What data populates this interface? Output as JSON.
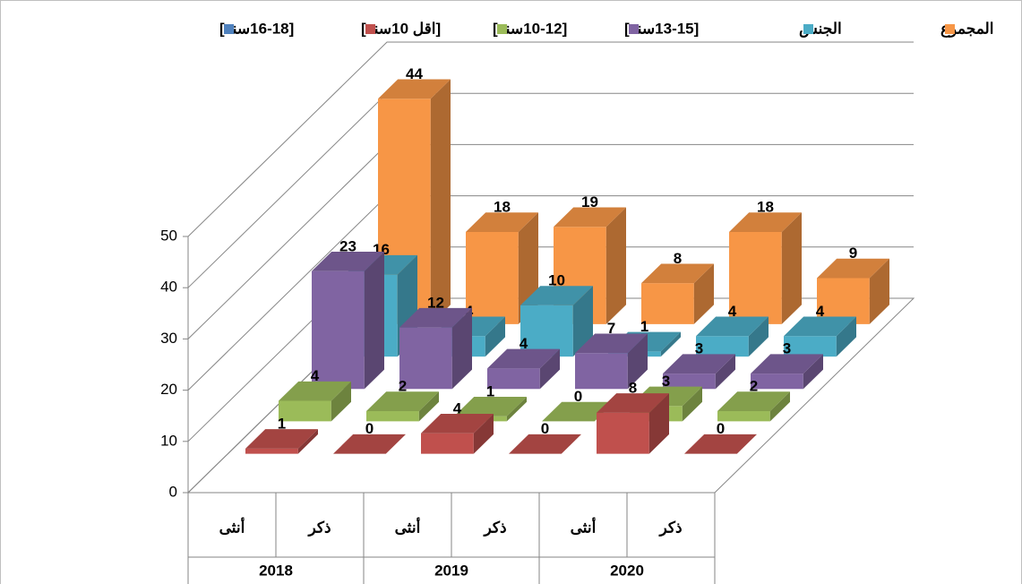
{
  "chart_data": {
    "type": "bar3d",
    "categories": [
      "أنثى",
      "ذكر",
      "أنثى",
      "ذكر",
      "أنثى",
      "ذكر"
    ],
    "category_groups": [
      "2018",
      "2019",
      "2020"
    ],
    "series": [
      {
        "name": "[16-18سنة]",
        "color": "#4f81bd",
        "values": [
          null,
          null,
          null,
          null,
          null,
          null
        ]
      },
      {
        "name": "[اقل 10سنة]",
        "color": "#c0504d",
        "values": [
          1,
          0,
          4,
          0,
          8,
          0
        ]
      },
      {
        "name": "[10-12سنة]",
        "color": "#9bbb59",
        "values": [
          4,
          2,
          1,
          0,
          3,
          2
        ]
      },
      {
        "name": "[13-15سنة]",
        "color": "#8064a2",
        "values": [
          23,
          12,
          4,
          7,
          3,
          3
        ]
      },
      {
        "name": "الجنس",
        "color": "#4bacc6",
        "values": [
          16,
          4,
          10,
          1,
          4,
          4
        ]
      },
      {
        "name": "المجموع",
        "color": "#f79646",
        "values": [
          44,
          18,
          19,
          8,
          18,
          9
        ]
      }
    ],
    "ylim": [
      0,
      50
    ],
    "yticks": [
      0,
      10,
      20,
      30,
      40,
      50
    ],
    "grid": true,
    "legend": "top"
  }
}
